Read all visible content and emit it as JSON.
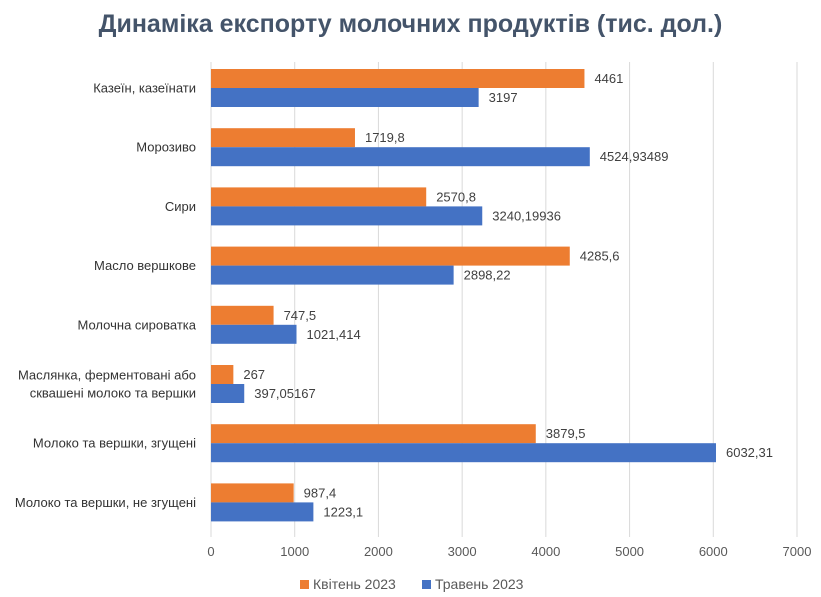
{
  "colors": {
    "april": "#ed7d31",
    "may": "#4472c4",
    "grid": "#d9d9d9",
    "title": "#44546a"
  },
  "chart_data": {
    "type": "bar",
    "orientation": "horizontal",
    "title": "Динаміка експорту молочних продуктів (тис. дол.)",
    "xlim": [
      0,
      7000
    ],
    "ticks": [
      0,
      1000,
      2000,
      3000,
      4000,
      5000,
      6000,
      7000
    ],
    "grid": true,
    "legend_position": "bottom",
    "categories": [
      [
        "Казеїн, казеїнати"
      ],
      [
        "Морозиво"
      ],
      [
        "Сири"
      ],
      [
        "Масло вершкове"
      ],
      [
        "Молочна сироватка"
      ],
      [
        "Маслянка, ферментовані або",
        "сквашені молоко та вершки"
      ],
      [
        "Молоко та вершки, згущені"
      ],
      [
        "Молоко та вершки, не згущені"
      ]
    ],
    "series": [
      {
        "name": "Квітень 2023",
        "color": "#ed7d31",
        "values": [
          4461,
          1719.8,
          2570.8,
          4285.6,
          747.5,
          267,
          3879.5,
          987.4
        ],
        "labels": [
          "4461",
          "1719,8",
          "2570,8",
          "4285,6",
          "747,5",
          "267",
          "3879,5",
          "987,4"
        ]
      },
      {
        "name": "Травень 2023",
        "color": "#4472c4",
        "values": [
          3197,
          4524.93489,
          3240.19936,
          2898.22,
          1021.414,
          397.05167,
          6032.31,
          1223.1
        ],
        "labels": [
          "3197",
          "4524,93489",
          "3240,19936",
          "2898,22",
          "1021,414",
          "397,05167",
          "6032,31",
          "1223,1"
        ]
      }
    ]
  }
}
